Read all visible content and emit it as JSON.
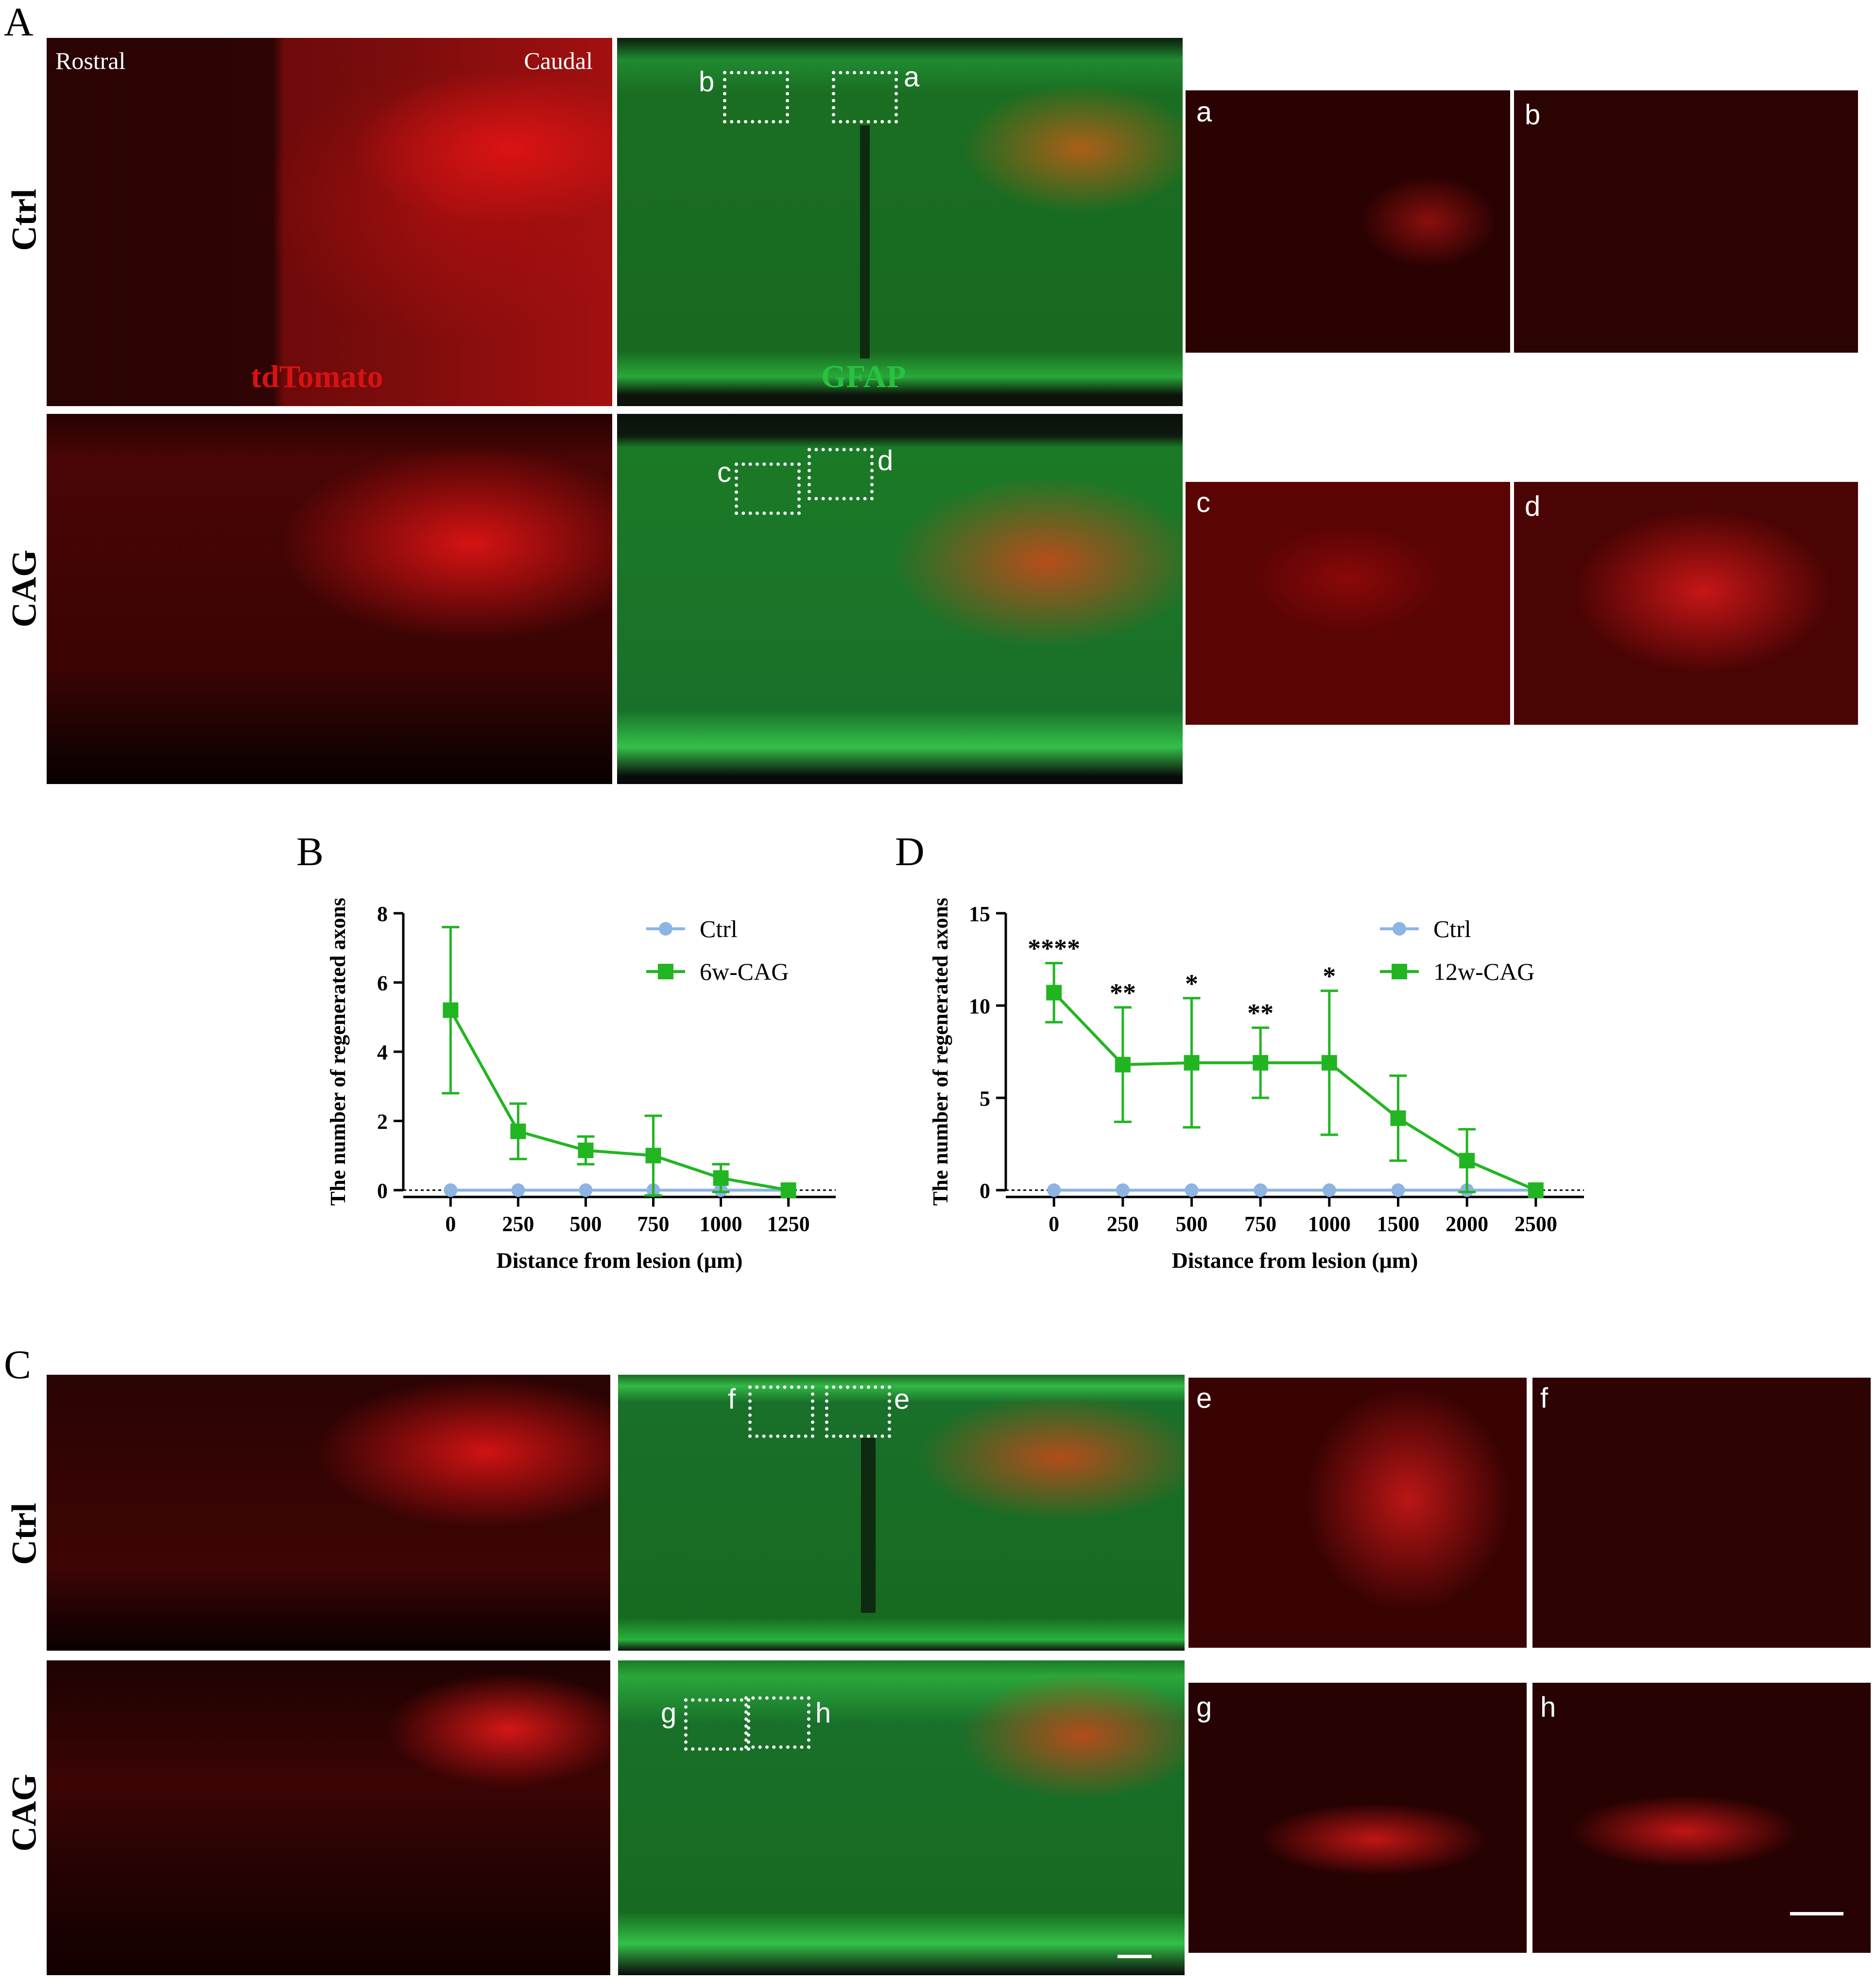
{
  "panel_letters": {
    "A": "A",
    "B": "B",
    "C": "C",
    "D": "D"
  },
  "panel_A": {
    "row_labels": [
      "Ctrl",
      "CAG"
    ],
    "rostral_label": "Rostral",
    "caudal_label": "Caudal",
    "red_channel_label": "tdTomato",
    "green_channel_label": "GFAP",
    "box_labels": {
      "a": "a",
      "b": "b",
      "c": "c",
      "d": "d"
    },
    "insets": [
      "a",
      "b",
      "c",
      "d"
    ]
  },
  "panel_C": {
    "row_labels": [
      "Ctrl",
      "CAG"
    ],
    "box_labels": {
      "e": "e",
      "f": "f",
      "g": "g",
      "h": "h"
    },
    "insets": [
      "e",
      "f",
      "g",
      "h"
    ]
  },
  "colors": {
    "ctrl": "#8db4e2",
    "cag": "#22b522",
    "tdtomato": "#e01010",
    "gfap": "#1fbf3a"
  },
  "chart_data": [
    {
      "panel": "B",
      "type": "line",
      "ylabel": "The number of regenerated axons",
      "xlabel": "Distance from lesion (μm)",
      "x": [
        0,
        250,
        500,
        750,
        1000,
        1250
      ],
      "xticks": [
        "0",
        "250",
        "500",
        "750",
        "1000",
        "1250"
      ],
      "ylim": [
        0,
        8
      ],
      "yticks": [
        0,
        2,
        4,
        6,
        8
      ],
      "legend_position": "top-right",
      "series": [
        {
          "name": "Ctrl",
          "marker": "circle",
          "color": "#8db4e2",
          "values": [
            0,
            0,
            0,
            0,
            0,
            0
          ],
          "err": [
            0,
            0,
            0,
            0,
            0,
            0
          ]
        },
        {
          "name": "6w-CAG",
          "marker": "square",
          "color": "#22b522",
          "values": [
            5.2,
            1.7,
            1.15,
            1.0,
            0.35,
            0
          ],
          "err": [
            2.4,
            0.8,
            0.4,
            1.15,
            0.4,
            0
          ]
        }
      ],
      "annotations": []
    },
    {
      "panel": "D",
      "type": "line",
      "ylabel": "The number of regenerated axons",
      "xlabel": "Distance from lesion (μm)",
      "x": [
        0,
        250,
        500,
        750,
        1000,
        1500,
        2000,
        2500
      ],
      "xticks": [
        "0",
        "250",
        "500",
        "750",
        "1000",
        "1500",
        "2000",
        "2500"
      ],
      "ylim": [
        0,
        15
      ],
      "yticks": [
        0,
        5,
        10,
        15
      ],
      "legend_position": "top-right",
      "series": [
        {
          "name": "Ctrl",
          "marker": "circle",
          "color": "#8db4e2",
          "values": [
            0,
            0,
            0,
            0,
            0,
            0,
            0,
            0
          ],
          "err": [
            0,
            0,
            0,
            0,
            0,
            0,
            0,
            0
          ]
        },
        {
          "name": "12w-CAG",
          "marker": "square",
          "color": "#22b522",
          "values": [
            10.7,
            6.8,
            6.9,
            6.9,
            6.9,
            3.9,
            1.6,
            0
          ],
          "err": [
            1.6,
            3.1,
            3.5,
            1.9,
            3.9,
            2.3,
            1.7,
            0
          ]
        }
      ],
      "annotations": [
        "****",
        "**",
        "*",
        "**",
        "*",
        "",
        "",
        ""
      ]
    }
  ]
}
